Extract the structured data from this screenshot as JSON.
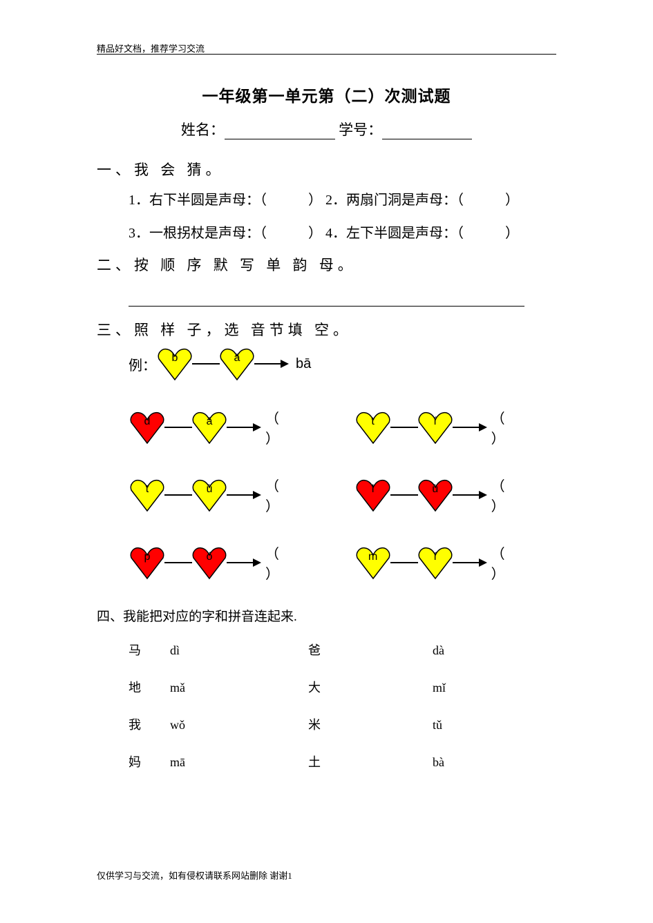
{
  "header_note": "精品好文档，推荐学习交流",
  "title": "一年级第一单元第（二）次测试题",
  "name_label": "姓名：",
  "id_label": "学号：",
  "sec1_heading": "一、我 会 猜。",
  "q1": "1．右下半圆是声母：（",
  "q1_end": "）",
  "q2": "2．两扇门洞是声母：（",
  "q2_end": "）",
  "q3": "3．一根拐杖是声母：（",
  "q3_end": "）",
  "q4": "4．左下半圆是声母：（",
  "q4_end": "）",
  "sec2_heading": "二、按 顺 序 默 写 单 韵 母。",
  "sec3_heading": "三、照 样 子，选 音节填 空。",
  "example_label": "例：",
  "example_answer": "bā",
  "answer_open": "（",
  "answer_close": "）",
  "sec4_heading": "四、我能把对应的字和拼音连起来.",
  "footer_note": "仅供学习与交流，如有侵权请联系网站删除 谢谢",
  "footer_page": "1",
  "colors": {
    "yellow": "#ffff00",
    "red": "#ff0000",
    "stroke": "#000000"
  },
  "example": {
    "h1": {
      "letter": "b",
      "fill": "#ffff00"
    },
    "h2": {
      "letter": "ā",
      "fill": "#ffff00"
    }
  },
  "rows": [
    {
      "left": {
        "h1": {
          "letter": "d",
          "fill": "#ff0000"
        },
        "h2": {
          "letter": "ā",
          "fill": "#ffff00"
        }
      },
      "right": {
        "h1": {
          "letter": "t",
          "fill": "#ffff00"
        },
        "h2": {
          "letter": "í",
          "fill": "#ffff00"
        }
      }
    },
    {
      "left": {
        "h1": {
          "letter": "t",
          "fill": "#ffff00"
        },
        "h2": {
          "letter": "ù",
          "fill": "#ffff00"
        }
      },
      "right": {
        "h1": {
          "letter": "l",
          "fill": "#ff0000"
        },
        "h2": {
          "letter": "ù",
          "fill": "#ff0000"
        }
      }
    },
    {
      "left": {
        "h1": {
          "letter": "p",
          "fill": "#ff0000"
        },
        "h2": {
          "letter": "ó",
          "fill": "#ff0000"
        }
      },
      "right": {
        "h1": {
          "letter": "m",
          "fill": "#ffff00"
        },
        "h2": {
          "letter": "ǐ",
          "fill": "#ffff00"
        }
      }
    }
  ],
  "match": [
    {
      "c1": "马",
      "c2": "dì",
      "c3": "爸",
      "c4": "dà"
    },
    {
      "c1": "地",
      "c2": "mǎ",
      "c3": "大",
      "c4": "mǐ"
    },
    {
      "c1": "我",
      "c2": "wǒ",
      "c3": "米",
      "c4": "tǔ"
    },
    {
      "c1": "妈",
      "c2": "mā",
      "c3": "土",
      "c4": "bà"
    }
  ]
}
